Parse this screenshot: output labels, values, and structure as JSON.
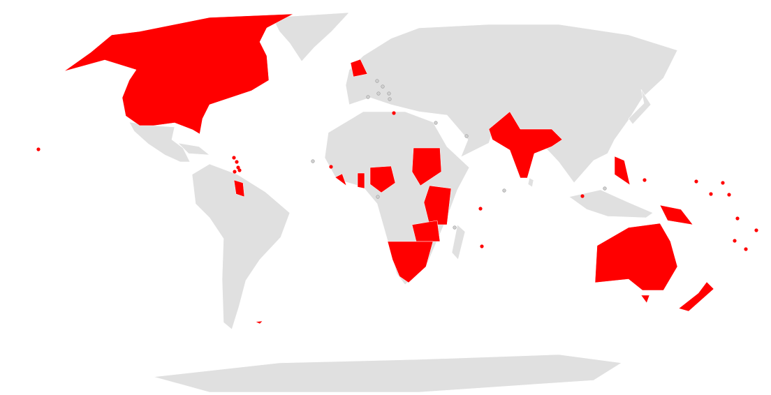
{
  "map": {
    "projection": "world",
    "colors": {
      "highlighted": "#ff0000",
      "other_land": "#e0e0e0",
      "ocean": "#ffffff",
      "borders": "#ffffff"
    },
    "highlighted_regions": [
      "canada-usa",
      "guyana",
      "united-kingdom",
      "sierra-leone-liberia",
      "ghana",
      "nigeria-cameroon",
      "sudan",
      "east-africa",
      "zambia-malawi",
      "southern-africa",
      "india-bangladesh",
      "philippines",
      "papua-new-guinea",
      "australia",
      "new-zealand",
      "falklands"
    ]
  }
}
